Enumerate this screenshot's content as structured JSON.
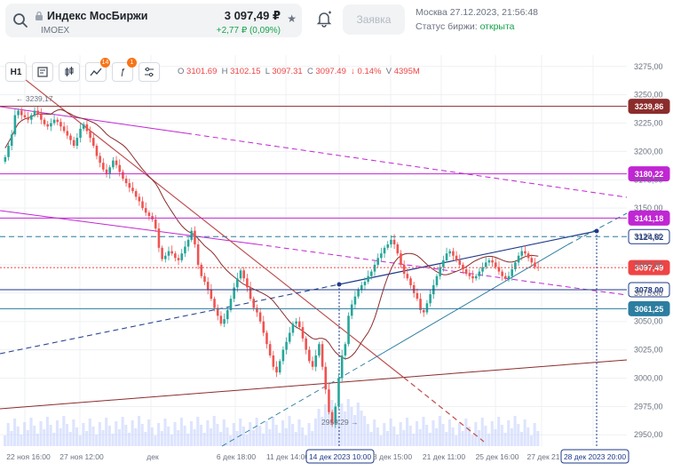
{
  "ticker": {
    "title": "Индекс МосБиржи",
    "code": "IMOEX",
    "price": "3 097,49 ₽",
    "change": "+2,77 ₽ (0,09%)"
  },
  "actions": {
    "order_label": "Заявка"
  },
  "session": {
    "time": "Москва 27.12.2023, 21:56:48",
    "status_prefix": "Статус биржи: ",
    "status_value": "открыта"
  },
  "toolbar": {
    "interval": "H1",
    "indicators_badge": "14",
    "drawings_badge": "1"
  },
  "ohlc": {
    "o_label": "O",
    "o": "3101.69",
    "h_label": "H",
    "h": "3102.15",
    "l_label": "L",
    "l": "3097.31",
    "c_label": "C",
    "c": "3097.49",
    "change": "↓ 0.14%",
    "v_label": "V",
    "v": "4395M"
  },
  "colors": {
    "up": "#26a69a",
    "down": "#ef5350",
    "accent": "#2563eb"
  },
  "chart_data": {
    "type": "candlestick",
    "y_ticks": [
      "3275,00",
      "3250,00",
      "3225,00",
      "3200,00",
      "3175,00",
      "3150,00",
      "3125,00",
      "3100,00",
      "3075,00",
      "3050,00",
      "3025,00",
      "3000,00",
      "2975,00",
      "2950,00"
    ],
    "x_ticks": [
      "22 ноя 16:00",
      "27 ноя 12:00",
      "дек",
      "6 дек 18:00",
      "11 дек 14:00",
      "14 дек 2023 10:00",
      "8 дек 15:00",
      "21 дек 11:00",
      "25 дек 16:00",
      "27 дек 21",
      "28 дек 2023 20:00"
    ],
    "ylim": [
      2940,
      3285
    ],
    "levels": [
      {
        "value": 3239.86,
        "label": "3239,86",
        "color": "#8b2c2c"
      },
      {
        "value": 3180.22,
        "label": "3180,22",
        "color": "#c026d3"
      },
      {
        "value": 3141.18,
        "label": "3141,18",
        "color": "#c026d3"
      },
      {
        "value": 3124.82,
        "label": "3124,82",
        "color": "#1e3a8a"
      },
      {
        "value": 3097.49,
        "label": "3097,49",
        "color": "#ef4444"
      },
      {
        "value": 3078.0,
        "label": "3078,00",
        "color": "#1e3a8a"
      },
      {
        "value": 3061.25,
        "label": "3061,25",
        "color": "#2c7da0"
      }
    ],
    "annotations": [
      {
        "text": "← 3239,17"
      },
      {
        "text": "2959,29 →"
      }
    ],
    "closes": [
      3195,
      3205,
      3215,
      3232,
      3236,
      3232,
      3230,
      3228,
      3232,
      3236,
      3233,
      3228,
      3224,
      3222,
      3225,
      3228,
      3226,
      3222,
      3218,
      3214,
      3210,
      3205,
      3212,
      3220,
      3224,
      3218,
      3212,
      3205,
      3196,
      3190,
      3184,
      3180,
      3186,
      3192,
      3188,
      3182,
      3176,
      3172,
      3168,
      3165,
      3160,
      3156,
      3150,
      3146,
      3143,
      3140,
      3132,
      3115,
      3105,
      3108,
      3112,
      3110,
      3106,
      3104,
      3110,
      3116,
      3122,
      3130,
      3118,
      3100,
      3090,
      3085,
      3078,
      3070,
      3062,
      3055,
      3048,
      3052,
      3060,
      3070,
      3080,
      3088,
      3095,
      3088,
      3080,
      3070,
      3062,
      3058,
      3050,
      3040,
      3030,
      3020,
      3010,
      3005,
      3015,
      3025,
      3032,
      3040,
      3048,
      3050,
      3045,
      3035,
      3025,
      3015,
      3010,
      3020,
      3030,
      3010,
      2990,
      2970,
      2960,
      2975,
      3000,
      3020,
      3030,
      3055,
      3065,
      3072,
      3078,
      3082,
      3085,
      3090,
      3094,
      3100,
      3106,
      3110,
      3115,
      3118,
      3122,
      3118,
      3110,
      3100,
      3092,
      3088,
      3082,
      3075,
      3070,
      3060,
      3058,
      3066,
      3074,
      3082,
      3090,
      3098,
      3104,
      3110,
      3112,
      3108,
      3104,
      3100,
      3096,
      3092,
      3090,
      3088,
      3090,
      3094,
      3098,
      3102,
      3104,
      3102,
      3098,
      3094,
      3090,
      3088,
      3090,
      3096,
      3102,
      3108,
      3112,
      3110,
      3106,
      3102,
      3098,
      3097.49
    ]
  }
}
